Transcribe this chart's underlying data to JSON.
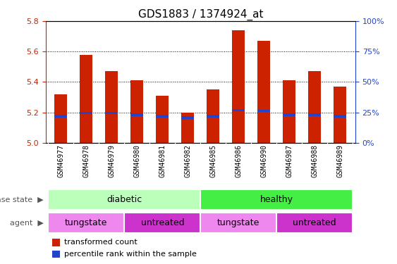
{
  "title": "GDS1883 / 1374924_at",
  "samples": [
    "GSM46977",
    "GSM46978",
    "GSM46979",
    "GSM46980",
    "GSM46981",
    "GSM46982",
    "GSM46985",
    "GSM46986",
    "GSM46990",
    "GSM46987",
    "GSM46988",
    "GSM46989"
  ],
  "transformed_count": [
    5.32,
    5.58,
    5.47,
    5.41,
    5.31,
    5.2,
    5.35,
    5.74,
    5.67,
    5.41,
    5.47,
    5.37
  ],
  "percentile_rank": [
    5.175,
    5.195,
    5.195,
    5.185,
    5.175,
    5.165,
    5.175,
    5.215,
    5.21,
    5.185,
    5.185,
    5.175
  ],
  "y_min": 5.0,
  "y_max": 5.8,
  "y_ticks": [
    5.0,
    5.2,
    5.4,
    5.6,
    5.8
  ],
  "right_y_ticks": [
    0,
    25,
    50,
    75,
    100
  ],
  "right_y_labels": [
    "0%",
    "25%",
    "50%",
    "75%",
    "100%"
  ],
  "bar_color": "#cc2200",
  "percentile_color": "#2244cc",
  "bar_width": 0.5,
  "blue_bar_height": 0.016,
  "disease_state_groups": [
    {
      "label": "diabetic",
      "start": 0,
      "end": 5,
      "color": "#bbffbb"
    },
    {
      "label": "healthy",
      "start": 6,
      "end": 11,
      "color": "#44ee44"
    }
  ],
  "agent_groups": [
    {
      "label": "tungstate",
      "start": 0,
      "end": 2,
      "color": "#ee88ee"
    },
    {
      "label": "untreated",
      "start": 3,
      "end": 5,
      "color": "#cc33cc"
    },
    {
      "label": "tungstate",
      "start": 6,
      "end": 8,
      "color": "#ee88ee"
    },
    {
      "label": "untreated",
      "start": 9,
      "end": 11,
      "color": "#cc33cc"
    }
  ],
  "legend_items": [
    {
      "label": "transformed count",
      "color": "#cc2200"
    },
    {
      "label": "percentile rank within the sample",
      "color": "#2244cc"
    }
  ],
  "title_fontsize": 11,
  "left_color": "#cc2200",
  "right_color": "#2244cc",
  "tick_bg_color": "#cccccc",
  "fig_width": 5.63,
  "fig_height": 3.75
}
